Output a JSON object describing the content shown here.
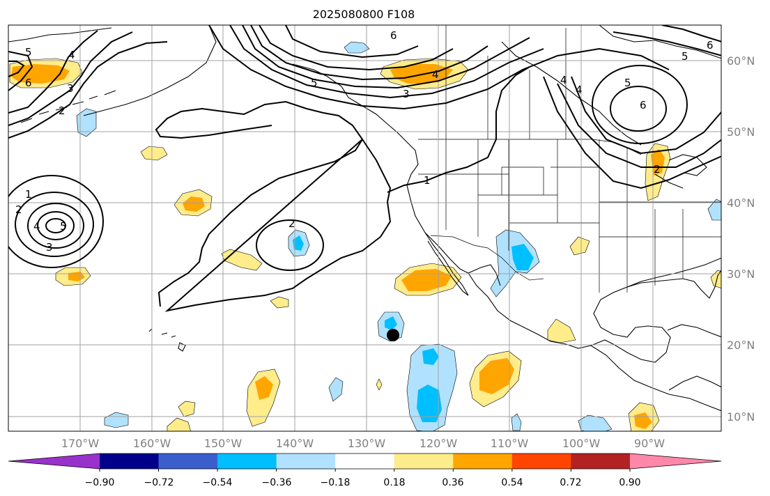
{
  "title": "2025080800 F108",
  "lon_labels": [
    "170°W",
    "160°W",
    "150°W",
    "140°W",
    "130°W",
    "120°W",
    "110°W",
    "100°W",
    "90°W"
  ],
  "lat_labels": [
    "60°N",
    "50°N",
    "40°N",
    "30°N",
    "20°N",
    "10°N"
  ],
  "contour_labels": [
    "1",
    "2",
    "3",
    "4",
    "5",
    "6"
  ],
  "colorbar": {
    "ticks": [
      "−0.90",
      "−0.72",
      "−0.54",
      "−0.36",
      "−0.18",
      "0.18",
      "0.36",
      "0.54",
      "0.72",
      "0.90"
    ],
    "colors": [
      "#9932cc",
      "#00008b",
      "#3a5fcd",
      "#00bfff",
      "#b0e2ff",
      "#ffffff",
      "#ffec8b",
      "#ffa500",
      "#ff4500",
      "#b22222",
      "#ff88aa"
    ]
  },
  "colors": {
    "light_yellow": "#ffec8b",
    "orange": "#ffa500",
    "light_blue": "#b0e2ff",
    "deep_sky_blue": "#00bfff",
    "contour": "#000000",
    "grid": "#a0a0a0",
    "axis_text": "#808080"
  },
  "marker": "storm-position-dot"
}
